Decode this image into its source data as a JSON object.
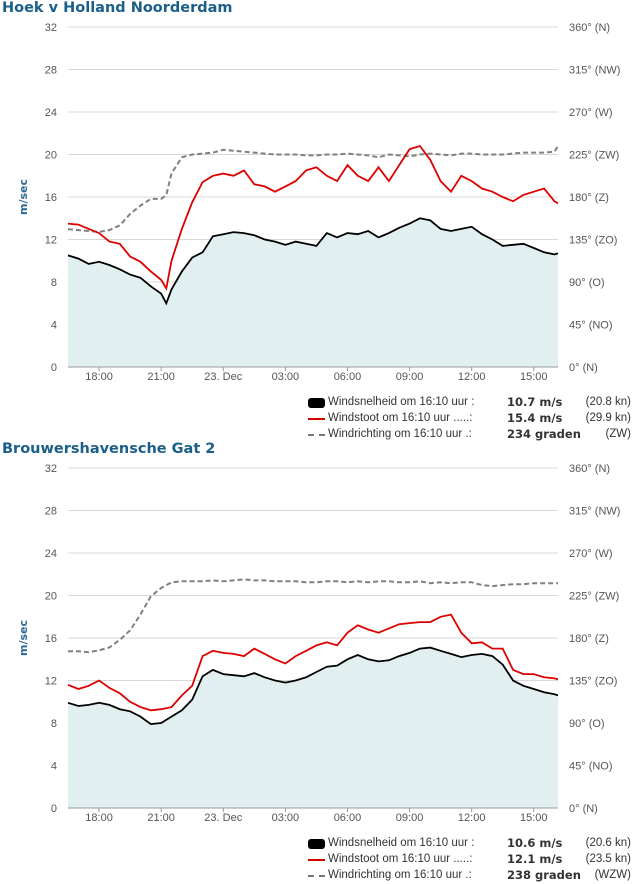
{
  "colors": {
    "speed": "#000000",
    "gust": "#dd0000",
    "direction": "#808080",
    "fill": "#e2eff1",
    "title": "#1a5e8a"
  },
  "panels": [
    {
      "title": "Hoek v Holland Noorderdam",
      "y_axis_label": "m/sec",
      "y_ticks": [
        "32",
        "28",
        "24",
        "20",
        "16",
        "12",
        "8",
        "4",
        "0"
      ],
      "dir_ticks": [
        "360° (N)",
        "315° (NW)",
        "270° (W)",
        "225° (ZW)",
        "180° (Z)",
        "135° (ZO)",
        "90° (O)",
        "45° (NO)",
        "0° (N)"
      ],
      "x_ticks": [
        "18:00",
        "21:00",
        "23. Dec",
        "03:00",
        "06:00",
        "09:00",
        "12:00",
        "15:00"
      ],
      "legend": [
        {
          "label": "Windsnelheid om 16:10 uur :",
          "value": "10.7 m/s",
          "extra": "(20.8 kn)"
        },
        {
          "label": "Windstoot om 16:10 uur .....:",
          "value": "15.4 m/s",
          "extra": "(29.9 kn)"
        },
        {
          "label": "Windrichting om 16:10 uur .:",
          "value": "234 graden",
          "extra": "(ZW)"
        }
      ]
    },
    {
      "title": "Brouwershavensche Gat 2",
      "y_axis_label": "m/sec",
      "y_ticks": [
        "32",
        "28",
        "24",
        "20",
        "16",
        "12",
        "8",
        "4",
        "0"
      ],
      "dir_ticks": [
        "360° (N)",
        "315° (NW)",
        "270° (W)",
        "225° (ZW)",
        "180° (Z)",
        "135° (ZO)",
        "90° (O)",
        "45° (NO)",
        "0° (N)"
      ],
      "x_ticks": [
        "18:00",
        "21:00",
        "23. Dec",
        "03:00",
        "06:00",
        "09:00",
        "12:00",
        "15:00"
      ],
      "legend": [
        {
          "label": "Windsnelheid om 16:10 uur :",
          "value": "10.6 m/s",
          "extra": "(20.6 kn)"
        },
        {
          "label": "Windstoot om 16:10 uur .....:",
          "value": "12.1 m/s",
          "extra": "(23.5 kn)"
        },
        {
          "label": "Windrichting om 16:10 uur .:",
          "value": "238 graden",
          "extra": "(WZW)"
        }
      ]
    }
  ],
  "chart_data": [
    {
      "type": "line",
      "title": "Hoek v Holland Noorderdam",
      "ylabel": "m/sec",
      "ylim": [
        0,
        32
      ],
      "y2lim": [
        0,
        360
      ],
      "x_hours": [
        16.5,
        17,
        17.5,
        18,
        18.5,
        19,
        19.5,
        20,
        20.5,
        21,
        21.25,
        21.5,
        22,
        22.5,
        23,
        23.5,
        24,
        24.5,
        25,
        25.5,
        26,
        26.5,
        27,
        27.5,
        28,
        28.5,
        29,
        29.5,
        30,
        30.5,
        31,
        31.5,
        32,
        32.5,
        33,
        33.5,
        34,
        34.5,
        35,
        35.5,
        36,
        36.5,
        37,
        37.5,
        38,
        38.5,
        39,
        39.5,
        40,
        40.17
      ],
      "series": [
        {
          "name": "Windsnelheid",
          "values": [
            10.5,
            10.2,
            9.7,
            9.9,
            9.6,
            9.2,
            8.7,
            8.4,
            7.6,
            6.9,
            6.0,
            7.3,
            9.0,
            10.3,
            10.8,
            12.3,
            12.5,
            12.7,
            12.6,
            12.4,
            12.0,
            11.8,
            11.5,
            11.8,
            11.6,
            11.4,
            12.6,
            12.2,
            12.6,
            12.5,
            12.8,
            12.2,
            12.6,
            13.1,
            13.5,
            14.0,
            13.8,
            13.0,
            12.8,
            13.0,
            13.2,
            12.5,
            12.0,
            11.4,
            11.5,
            11.6,
            11.2,
            10.8,
            10.6,
            10.7
          ]
        },
        {
          "name": "Windstoot",
          "values": [
            13.5,
            13.4,
            13.0,
            12.6,
            11.8,
            11.6,
            10.4,
            9.9,
            9.0,
            8.2,
            7.4,
            10.0,
            13.0,
            15.5,
            17.4,
            18.0,
            18.2,
            18.0,
            18.5,
            17.2,
            17.0,
            16.5,
            17.0,
            17.5,
            18.5,
            18.8,
            18.0,
            17.5,
            19.0,
            18.0,
            17.5,
            18.8,
            17.5,
            19.0,
            20.5,
            20.8,
            19.5,
            17.5,
            16.5,
            18.0,
            17.5,
            16.8,
            16.5,
            16.0,
            15.6,
            16.2,
            16.5,
            16.8,
            15.6,
            15.4
          ]
        },
        {
          "name": "Windrichting",
          "axis": "right",
          "values": [
            146,
            145,
            144,
            143,
            145,
            150,
            162,
            171,
            178,
            178,
            182,
            205,
            222,
            225,
            226,
            227,
            230,
            229,
            228,
            227,
            226,
            225,
            225,
            225,
            224,
            224,
            225,
            225,
            226,
            225,
            224,
            222,
            225,
            224,
            223,
            225,
            226,
            225,
            224,
            226,
            226,
            225,
            225,
            225,
            226,
            227,
            227,
            227,
            228,
            234
          ]
        }
      ]
    },
    {
      "type": "line",
      "title": "Brouwershavensche Gat 2",
      "ylabel": "m/sec",
      "ylim": [
        0,
        32
      ],
      "y2lim": [
        0,
        360
      ],
      "x_hours": [
        16.5,
        17,
        17.5,
        18,
        18.5,
        19,
        19.5,
        20,
        20.5,
        21,
        21.5,
        22,
        22.5,
        23,
        23.5,
        24,
        24.5,
        25,
        25.5,
        26,
        26.5,
        27,
        27.5,
        28,
        28.5,
        29,
        29.5,
        30,
        30.5,
        31,
        31.5,
        32,
        32.5,
        33,
        33.5,
        34,
        34.5,
        35,
        35.5,
        36,
        36.5,
        37,
        37.5,
        38,
        38.5,
        39,
        39.5,
        40,
        40.17
      ],
      "series": [
        {
          "name": "Windsnelheid",
          "values": [
            9.9,
            9.6,
            9.7,
            9.9,
            9.7,
            9.3,
            9.1,
            8.6,
            7.9,
            8.0,
            8.6,
            9.2,
            10.2,
            12.4,
            13.0,
            12.6,
            12.5,
            12.4,
            12.7,
            12.3,
            12.0,
            11.8,
            12.0,
            12.3,
            12.8,
            13.3,
            13.4,
            14.0,
            14.4,
            14.0,
            13.8,
            13.9,
            14.3,
            14.6,
            15.0,
            15.1,
            14.8,
            14.5,
            14.2,
            14.4,
            14.5,
            14.3,
            13.5,
            12.0,
            11.5,
            11.2,
            10.9,
            10.7,
            10.6
          ]
        },
        {
          "name": "Windstoot",
          "values": [
            11.6,
            11.2,
            11.5,
            12.0,
            11.3,
            10.8,
            10.0,
            9.5,
            9.2,
            9.3,
            9.5,
            10.6,
            11.5,
            14.3,
            14.8,
            14.6,
            14.5,
            14.3,
            15.0,
            14.5,
            14.0,
            13.6,
            14.3,
            14.8,
            15.3,
            15.6,
            15.3,
            16.5,
            17.2,
            16.8,
            16.5,
            16.9,
            17.3,
            17.4,
            17.5,
            17.5,
            18.0,
            18.2,
            16.5,
            15.5,
            15.6,
            15.0,
            15.0,
            13.0,
            12.6,
            12.6,
            12.3,
            12.2,
            12.1
          ]
        },
        {
          "name": "Windrichting",
          "axis": "right",
          "values": [
            166,
            166,
            165,
            167,
            170,
            178,
            188,
            205,
            224,
            233,
            239,
            240,
            240,
            240,
            241,
            240,
            241,
            242,
            241,
            241,
            240,
            240,
            240,
            239,
            239,
            240,
            240,
            239,
            240,
            239,
            240,
            240,
            239,
            239,
            240,
            238,
            239,
            238,
            239,
            239,
            236,
            235,
            236,
            237,
            237,
            238,
            238,
            238,
            238
          ]
        }
      ]
    }
  ]
}
